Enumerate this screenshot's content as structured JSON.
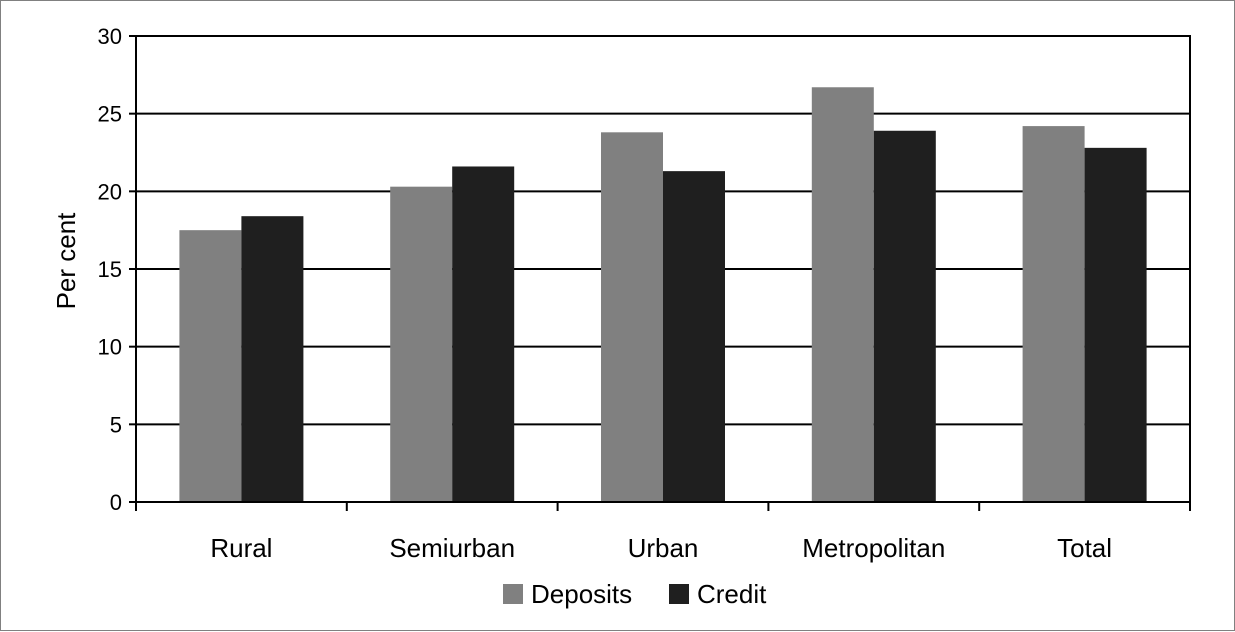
{
  "chart_data": {
    "type": "bar",
    "categories": [
      "Rural",
      "Semiurban",
      "Urban",
      "Metropolitan",
      "Total"
    ],
    "series": [
      {
        "name": "Deposits",
        "values": [
          17.5,
          20.3,
          23.8,
          26.7,
          24.2
        ],
        "color": "#808080"
      },
      {
        "name": "Credit",
        "values": [
          18.4,
          21.6,
          21.3,
          23.9,
          22.8
        ],
        "color": "#1f1f1f"
      }
    ],
    "title": "",
    "xlabel": "",
    "ylabel": "Per cent",
    "ylim": [
      0,
      30
    ],
    "yticks": [
      "0",
      "5",
      "10",
      "15",
      "20",
      "25",
      "30"
    ],
    "grid": true,
    "legend": "bottom-center"
  }
}
